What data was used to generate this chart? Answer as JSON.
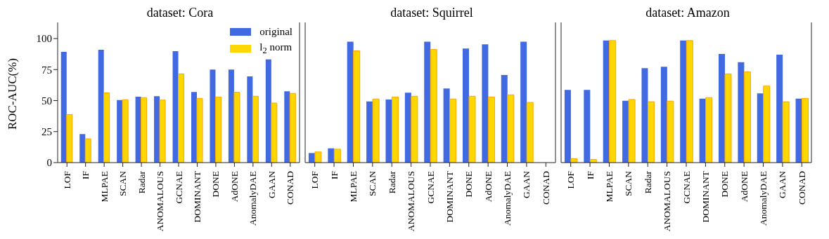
{
  "chart_data": [
    {
      "type": "bar",
      "title": "dataset: Cora",
      "ylabel": "ROC-AUC(%)",
      "categories": [
        "LOF",
        "IF",
        "MLPAE",
        "SCAN",
        "Radar",
        "ANOMALOUS",
        "GCNAE",
        "DOMINANT",
        "DONE",
        "AdONE",
        "AnomalyDAE",
        "GAAN",
        "CONAD"
      ],
      "series": [
        {
          "name": "original",
          "color": "#4169e1",
          "values": [
            89.2,
            23.0,
            90.9,
            50.4,
            53.1,
            53.6,
            89.8,
            56.9,
            75.0,
            75.0,
            69.5,
            83.2,
            57.5
          ]
        },
        {
          "name": "l$_{2}$ norm",
          "color": "#ffd700",
          "values": [
            38.7,
            19.2,
            56.2,
            50.7,
            52.4,
            50.4,
            71.5,
            51.8,
            52.9,
            56.8,
            53.5,
            48.0,
            55.8
          ]
        }
      ],
      "ylim": [
        0,
        113
      ],
      "yticks": [
        0,
        25,
        50,
        75,
        100
      ],
      "legend": "top right",
      "grid": false
    },
    {
      "type": "bar",
      "title": "dataset: Squirrel",
      "categories": [
        "LOF",
        "IF",
        "MLPAE",
        "SCAN",
        "Radar",
        "ANOMALOUS",
        "GCNAE",
        "DOMINANT",
        "DONE",
        "AdONE",
        "AnomalyDAE",
        "GAAN",
        "CONAD"
      ],
      "series": [
        {
          "color": "#4169e1",
          "values": [
            7.7,
            11.5,
            97.4,
            49.3,
            50.9,
            56.4,
            97.4,
            59.7,
            92.0,
            95.3,
            70.6,
            97.4,
            null
          ]
        },
        {
          "color": "#ffd700",
          "values": [
            8.6,
            10.8,
            90.1,
            51.3,
            52.9,
            53.5,
            91.2,
            51.3,
            53.5,
            52.9,
            54.6,
            48.5,
            null
          ]
        }
      ],
      "ylim": [
        0,
        113
      ],
      "yticks": [
        0,
        25,
        50,
        75,
        100
      ],
      "tick_labels": "x",
      "grid": false
    },
    {
      "type": "bar",
      "title": "dataset: Amazon",
      "categories": [
        "LOF",
        "IF",
        "MLPAE",
        "SCAN",
        "Radar",
        "ANOMALOUS",
        "GCNAE",
        "DOMINANT",
        "DONE",
        "AdONE",
        "AnomalyDAE",
        "GAAN",
        "CONAD"
      ],
      "series": [
        {
          "color": "#4169e1",
          "values": [
            58.6,
            58.6,
            98.5,
            49.8,
            76.1,
            77.2,
            98.5,
            51.5,
            87.6,
            81.0,
            55.8,
            87.0,
            51.5
          ]
        },
        {
          "color": "#ffd700",
          "values": [
            3.1,
            2.6,
            98.4,
            50.9,
            49.1,
            49.6,
            98.4,
            52.4,
            71.5,
            73.2,
            61.7,
            49.1,
            51.8
          ]
        }
      ],
      "ylim": [
        0,
        113
      ],
      "yticks": [
        0,
        25,
        50,
        75,
        100
      ],
      "tick_labels": "x",
      "grid": false
    }
  ]
}
